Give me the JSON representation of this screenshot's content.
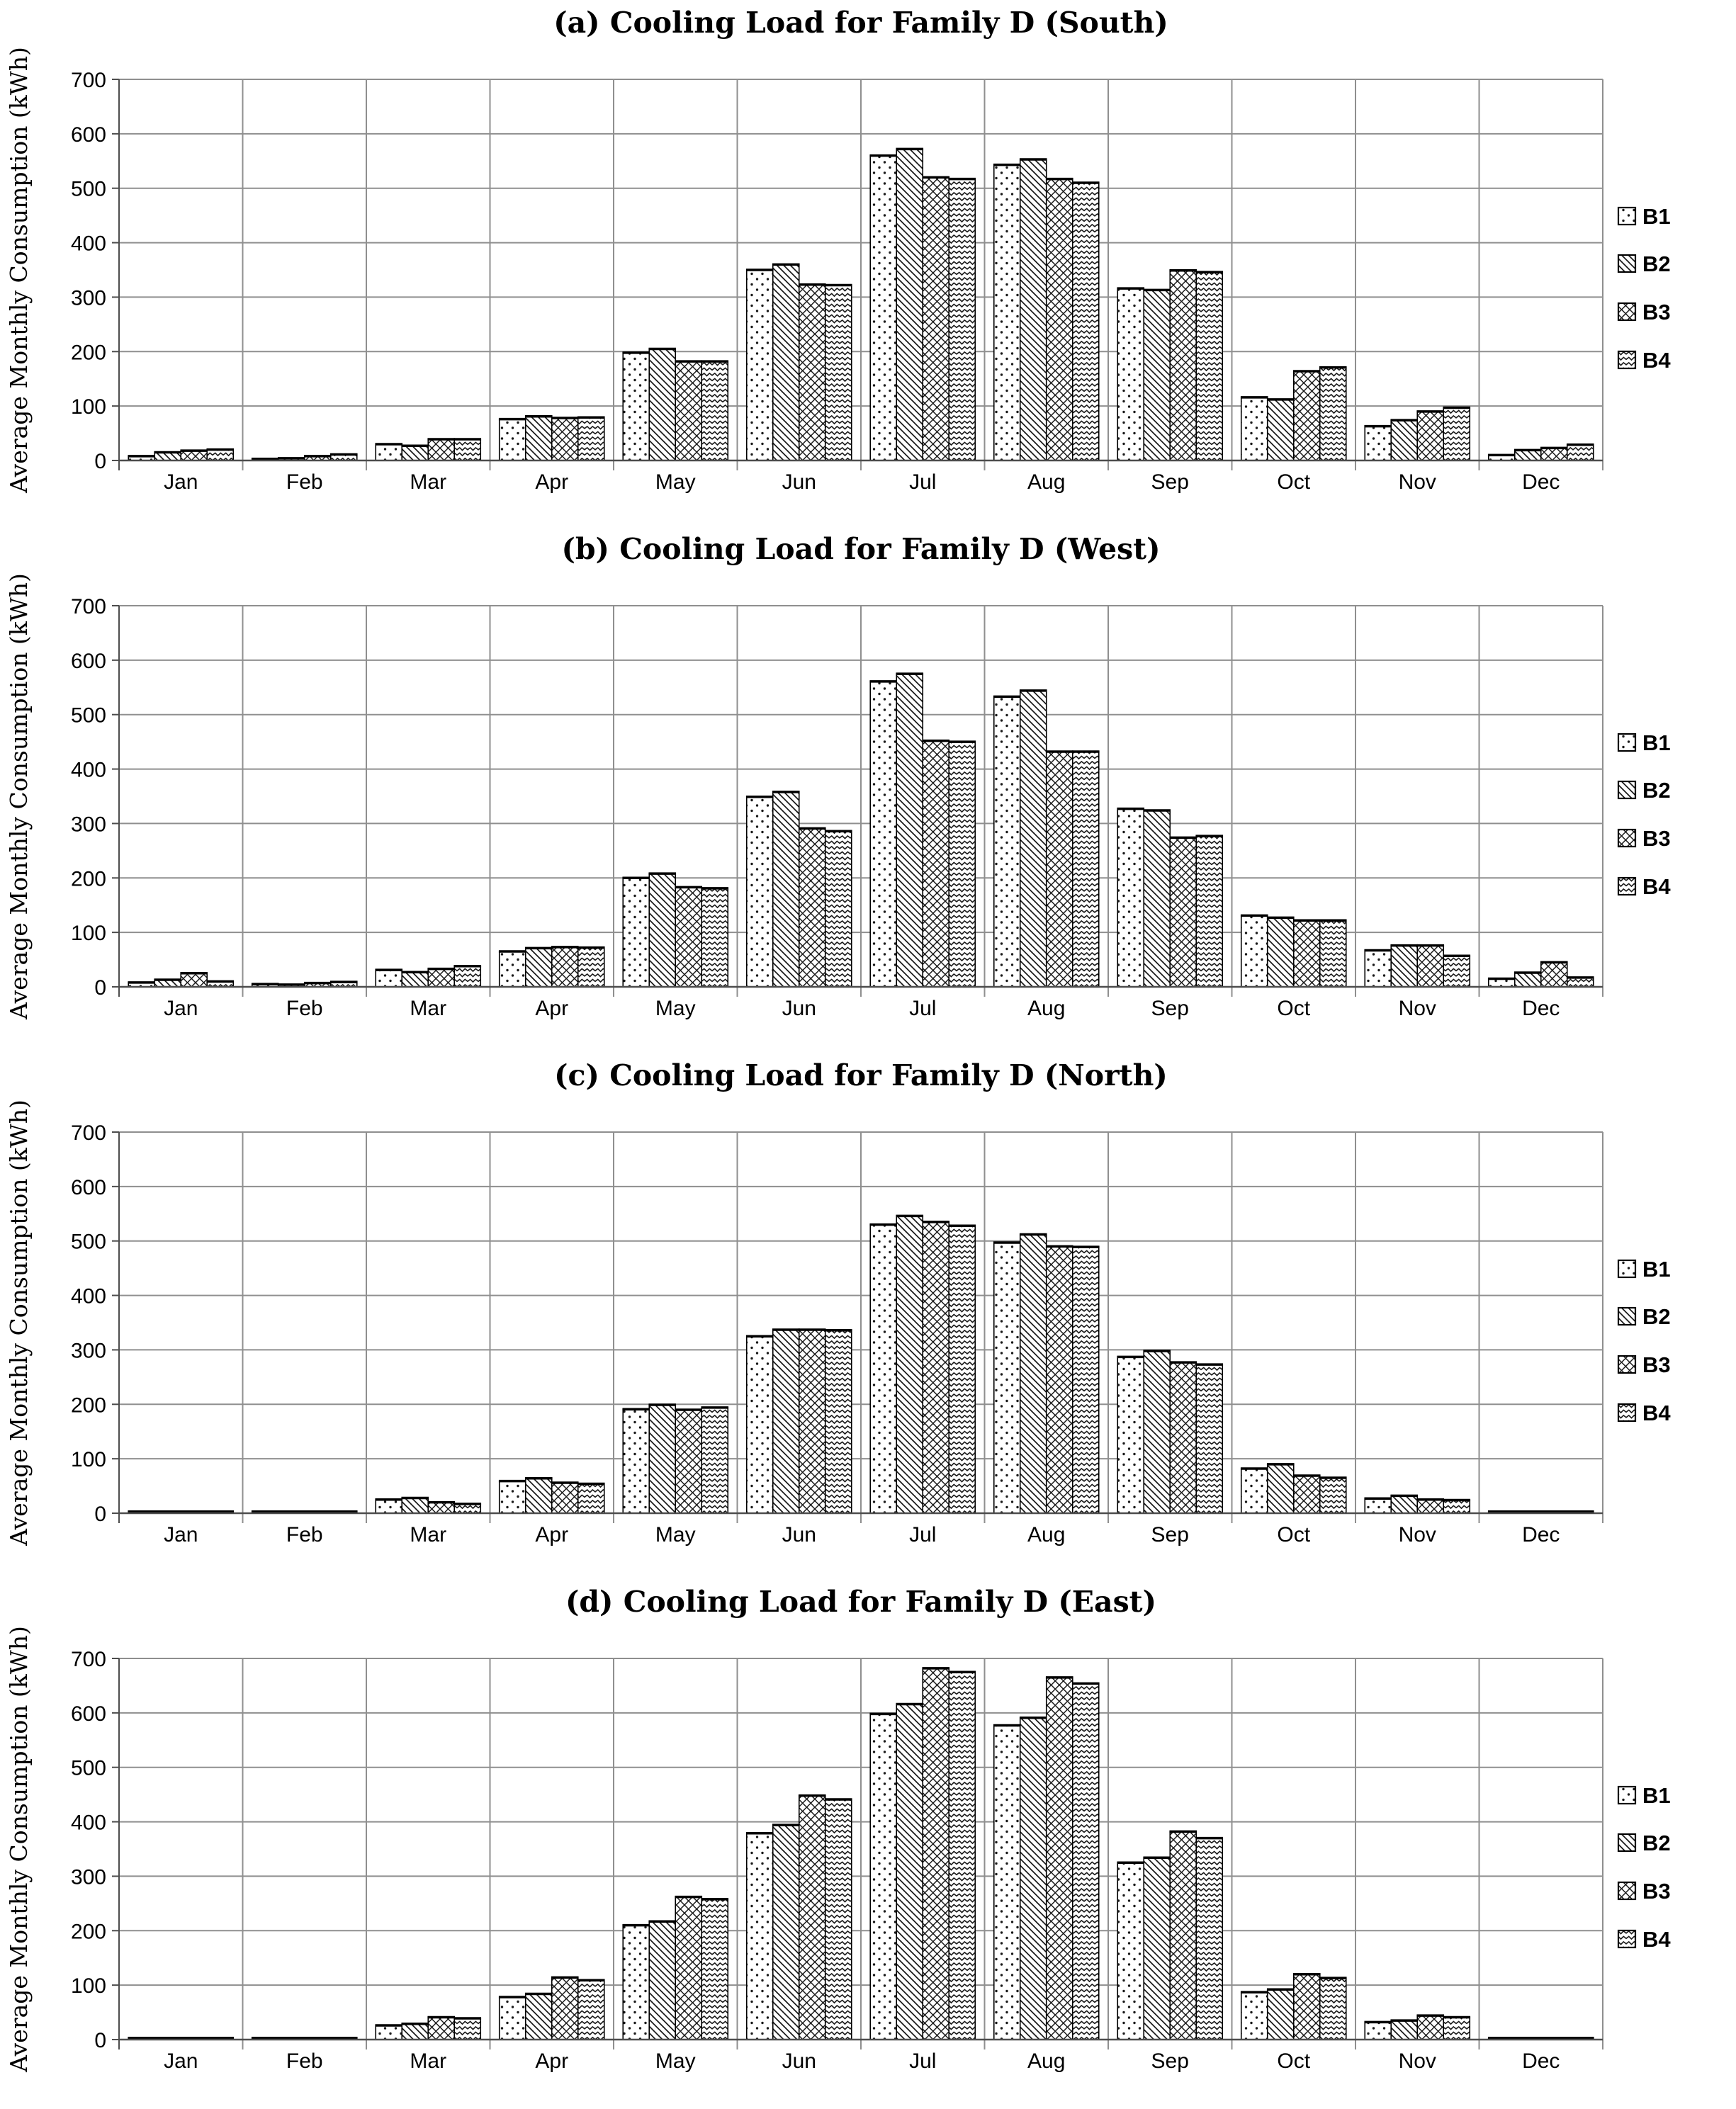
{
  "figure_title": "Cooling Load for Family D",
  "y_axis_label": "Average Monthly Consumption (kWh)",
  "months": [
    "Jan",
    "Feb",
    "Mar",
    "Apr",
    "May",
    "Jun",
    "Jul",
    "Aug",
    "Sep",
    "Oct",
    "Nov",
    "Dec"
  ],
  "y_ticks": [
    0,
    100,
    200,
    300,
    400,
    500,
    600,
    700
  ],
  "legend": {
    "position": "right",
    "entries": [
      {
        "label": "B1",
        "pattern": "dots"
      },
      {
        "label": "B2",
        "pattern": "diagonal-lines"
      },
      {
        "label": "B3",
        "pattern": "diagonal-crosshatch"
      },
      {
        "label": "B4",
        "pattern": "chevron"
      }
    ]
  },
  "colors": {
    "bar_fill": "#ffffff",
    "bar_outline": "#000000",
    "pattern_ink": "#1a1a1a",
    "gridline": "#8f8f8f",
    "axis": "#4d4d4d",
    "text": "#000000",
    "background": "#ffffff"
  },
  "chart_data": [
    {
      "id": "a",
      "type": "bar",
      "title": "(a) Cooling Load for Family D (South)",
      "xlabel": "",
      "ylabel": "Average Monthly Consumption (kWh)",
      "ylim": [
        0,
        700
      ],
      "grid": true,
      "legend_position": "right",
      "categories": [
        "Jan",
        "Feb",
        "Mar",
        "Apr",
        "May",
        "Jun",
        "Jul",
        "Aug",
        "Sep",
        "Oct",
        "Nov",
        "Dec"
      ],
      "series": [
        {
          "name": "B1",
          "values": [
            8,
            3,
            30,
            76,
            198,
            350,
            560,
            543,
            316,
            116,
            63,
            10
          ]
        },
        {
          "name": "B2",
          "values": [
            15,
            4,
            27,
            81,
            205,
            360,
            572,
            553,
            313,
            112,
            74,
            19
          ]
        },
        {
          "name": "B3",
          "values": [
            18,
            8,
            39,
            78,
            182,
            323,
            520,
            517,
            349,
            164,
            90,
            23
          ]
        },
        {
          "name": "B4",
          "values": [
            20,
            11,
            39,
            79,
            182,
            322,
            517,
            510,
            346,
            171,
            97,
            29
          ]
        }
      ]
    },
    {
      "id": "b",
      "type": "bar",
      "title": "(b) Cooling Load for Family D (West)",
      "xlabel": "",
      "ylabel": "Average Monthly Consumption (kWh)",
      "ylim": [
        0,
        700
      ],
      "grid": true,
      "legend_position": "right",
      "categories": [
        "Jan",
        "Feb",
        "Mar",
        "Apr",
        "May",
        "Jun",
        "Jul",
        "Aug",
        "Sep",
        "Oct",
        "Nov",
        "Dec"
      ],
      "series": [
        {
          "name": "B1",
          "values": [
            8,
            5,
            31,
            65,
            200,
            349,
            561,
            533,
            327,
            131,
            67,
            15
          ]
        },
        {
          "name": "B2",
          "values": [
            13,
            4,
            27,
            71,
            208,
            358,
            575,
            544,
            324,
            127,
            76,
            26
          ]
        },
        {
          "name": "B3",
          "values": [
            25,
            7,
            33,
            73,
            183,
            291,
            452,
            432,
            274,
            122,
            76,
            45
          ]
        },
        {
          "name": "B4",
          "values": [
            10,
            9,
            38,
            72,
            181,
            286,
            450,
            432,
            277,
            122,
            57,
            17
          ]
        }
      ]
    },
    {
      "id": "c",
      "type": "bar",
      "title": "(c) Cooling Load for Family D (North)",
      "xlabel": "",
      "ylabel": "Average Monthly Consumption (kWh)",
      "ylim": [
        0,
        700
      ],
      "grid": true,
      "legend_position": "right",
      "categories": [
        "Jan",
        "Feb",
        "Mar",
        "Apr",
        "May",
        "Jun",
        "Jul",
        "Aug",
        "Sep",
        "Oct",
        "Nov",
        "Dec"
      ],
      "series": [
        {
          "name": "B1",
          "values": [
            3,
            3,
            25,
            59,
            191,
            325,
            530,
            497,
            287,
            82,
            27,
            3
          ]
        },
        {
          "name": "B2",
          "values": [
            3,
            3,
            28,
            64,
            199,
            337,
            546,
            512,
            298,
            90,
            32,
            3
          ]
        },
        {
          "name": "B3",
          "values": [
            3,
            3,
            20,
            56,
            190,
            337,
            535,
            490,
            277,
            69,
            25,
            3
          ]
        },
        {
          "name": "B4",
          "values": [
            3,
            3,
            17,
            54,
            194,
            336,
            528,
            489,
            273,
            65,
            24,
            3
          ]
        }
      ]
    },
    {
      "id": "d",
      "type": "bar",
      "title": "(d) Cooling Load for Family D (East)",
      "xlabel": "",
      "ylabel": "Average Monthly Consumption (kWh)",
      "ylim": [
        0,
        700
      ],
      "grid": true,
      "legend_position": "right",
      "categories": [
        "Jan",
        "Feb",
        "Mar",
        "Apr",
        "May",
        "Jun",
        "Jul",
        "Aug",
        "Sep",
        "Oct",
        "Nov",
        "Dec"
      ],
      "series": [
        {
          "name": "B1",
          "values": [
            3,
            3,
            26,
            78,
            210,
            379,
            598,
            577,
            325,
            87,
            32,
            3
          ]
        },
        {
          "name": "B2",
          "values": [
            3,
            3,
            29,
            84,
            217,
            394,
            616,
            591,
            334,
            92,
            35,
            3
          ]
        },
        {
          "name": "B3",
          "values": [
            3,
            3,
            41,
            114,
            262,
            448,
            682,
            665,
            382,
            120,
            44,
            3
          ]
        },
        {
          "name": "B4",
          "values": [
            3,
            3,
            39,
            109,
            258,
            441,
            675,
            654,
            370,
            113,
            41,
            3
          ]
        }
      ]
    }
  ]
}
